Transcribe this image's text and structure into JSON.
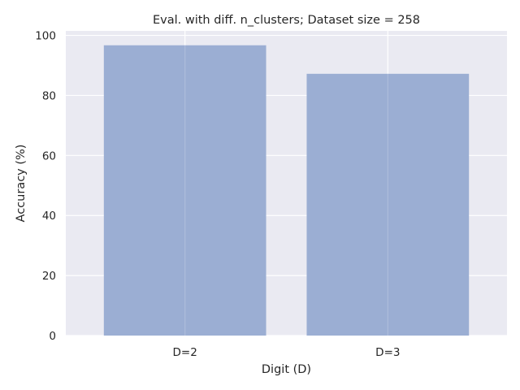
{
  "chart_data": {
    "type": "bar",
    "title": "Eval. with diff. n_clusters; Dataset size = 258",
    "xlabel": "Digit (D)",
    "ylabel": "Accuracy (%)",
    "categories": [
      "D=2",
      "D=3"
    ],
    "values": [
      96.7,
      87.2
    ],
    "ylim": [
      0,
      101.5
    ],
    "yticks": [
      0,
      20,
      40,
      60,
      80,
      100
    ],
    "grid": true,
    "bar_color": "#99acd2",
    "background_color": "#eaeaf2",
    "grid_color": "#ffffff"
  }
}
